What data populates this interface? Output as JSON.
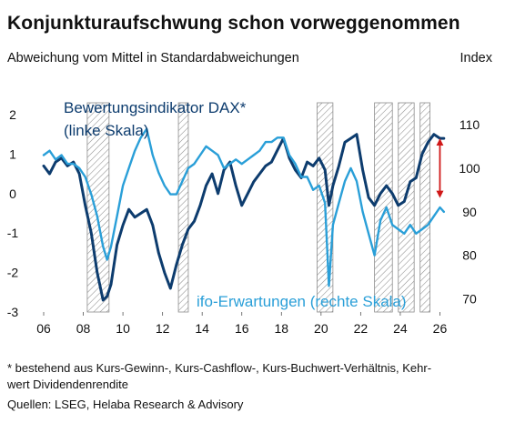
{
  "chart_data": {
    "type": "line",
    "title": "Konjunkturaufschwung schon vorweggenommen",
    "subtitle": "Abweichung vom Mittel in Standardabweichungen",
    "right_axis_unit": "Index",
    "x_tick_labels": [
      "06",
      "08",
      "10",
      "12",
      "14",
      "16",
      "18",
      "20",
      "22",
      "24",
      "26"
    ],
    "x_range": [
      2006,
      2026.3
    ],
    "y_left_ticks": [
      "2",
      "1",
      "0",
      "-1",
      "-2",
      "-3"
    ],
    "y_left_range": [
      -3,
      2.3
    ],
    "y_right_ticks": [
      "110",
      "100",
      "90",
      "80",
      "70"
    ],
    "y_right_range": [
      67,
      115
    ],
    "shaded_periods": [
      {
        "start": 2008.2,
        "end": 2009.3
      },
      {
        "start": 2012.8,
        "end": 2013.3
      },
      {
        "start": 2019.8,
        "end": 2020.6
      },
      {
        "start": 2022.7,
        "end": 2023.6
      },
      {
        "start": 2023.9,
        "end": 2024.7
      },
      {
        "start": 2025.0,
        "end": 2025.5
      }
    ],
    "annotations": [
      {
        "text": "Bewertungsindikator DAX*",
        "series": "dax"
      },
      {
        "text": "(linke Skala)",
        "series": "dax"
      },
      {
        "text": "ifo-Erwartungen (rechte Skala)",
        "series": "ifo"
      }
    ],
    "series": [
      {
        "id": "dax",
        "axis": "left",
        "color": "#0d3c6e",
        "x": [
          2006.0,
          2006.3,
          2006.6,
          2006.9,
          2007.2,
          2007.5,
          2007.8,
          2008.1,
          2008.4,
          2008.7,
          2009.0,
          2009.2,
          2009.4,
          2009.7,
          2010.0,
          2010.3,
          2010.6,
          2010.9,
          2011.2,
          2011.5,
          2011.8,
          2012.1,
          2012.4,
          2012.7,
          2013.0,
          2013.3,
          2013.6,
          2013.9,
          2014.2,
          2014.5,
          2014.8,
          2015.1,
          2015.4,
          2015.7,
          2016.0,
          2016.3,
          2016.6,
          2016.9,
          2017.2,
          2017.5,
          2017.8,
          2018.1,
          2018.4,
          2018.7,
          2019.0,
          2019.3,
          2019.6,
          2019.9,
          2020.2,
          2020.4,
          2020.6,
          2020.9,
          2021.2,
          2021.5,
          2021.8,
          2022.1,
          2022.4,
          2022.7,
          2023.0,
          2023.3,
          2023.6,
          2023.9,
          2024.2,
          2024.5,
          2024.8,
          2025.1,
          2025.4,
          2025.7,
          2026.0,
          2026.2
        ],
        "y": [
          0.7,
          0.5,
          0.8,
          0.9,
          0.7,
          0.8,
          0.5,
          -0.3,
          -1.0,
          -2.0,
          -2.7,
          -2.6,
          -2.3,
          -1.3,
          -0.8,
          -0.4,
          -0.6,
          -0.5,
          -0.4,
          -0.8,
          -1.5,
          -2.0,
          -2.4,
          -1.8,
          -1.3,
          -0.9,
          -0.7,
          -0.3,
          0.2,
          0.5,
          0.0,
          0.6,
          0.8,
          0.2,
          -0.3,
          0.0,
          0.3,
          0.5,
          0.7,
          0.8,
          1.1,
          1.4,
          0.9,
          0.6,
          0.4,
          0.8,
          0.7,
          0.9,
          0.6,
          -0.3,
          0.2,
          0.7,
          1.3,
          1.4,
          1.5,
          0.6,
          -0.1,
          -0.3,
          0.0,
          0.2,
          0.0,
          -0.3,
          -0.2,
          0.3,
          0.4,
          1.0,
          1.3,
          1.5,
          1.4,
          1.4
        ]
      },
      {
        "id": "ifo",
        "axis": "right",
        "color": "#2a9fd8",
        "x": [
          2006.0,
          2006.3,
          2006.6,
          2006.9,
          2007.2,
          2007.5,
          2007.8,
          2008.1,
          2008.4,
          2008.7,
          2009.0,
          2009.2,
          2009.4,
          2009.7,
          2010.0,
          2010.3,
          2010.6,
          2010.9,
          2011.2,
          2011.5,
          2011.8,
          2012.1,
          2012.4,
          2012.7,
          2013.0,
          2013.3,
          2013.6,
          2013.9,
          2014.2,
          2014.5,
          2014.8,
          2015.1,
          2015.4,
          2015.7,
          2016.0,
          2016.3,
          2016.6,
          2016.9,
          2017.2,
          2017.5,
          2017.8,
          2018.1,
          2018.4,
          2018.7,
          2019.0,
          2019.3,
          2019.6,
          2019.9,
          2020.2,
          2020.4,
          2020.6,
          2020.9,
          2021.2,
          2021.5,
          2021.8,
          2022.1,
          2022.4,
          2022.7,
          2023.0,
          2023.3,
          2023.6,
          2023.9,
          2024.2,
          2024.5,
          2024.8,
          2025.1,
          2025.4,
          2025.7,
          2026.0,
          2026.2
        ],
        "y": [
          103,
          104,
          102,
          103,
          101,
          101,
          100,
          98,
          94,
          89,
          82,
          79,
          82,
          89,
          96,
          100,
          104,
          107,
          109,
          103,
          99,
          96,
          94,
          94,
          97,
          100,
          101,
          103,
          105,
          104,
          103,
          100,
          101,
          102,
          101,
          102,
          103,
          104,
          106,
          106,
          107,
          107,
          103,
          101,
          98,
          98,
          95,
          96,
          92,
          73,
          87,
          92,
          97,
          100,
          97,
          90,
          85,
          80,
          88,
          91,
          87,
          86,
          85,
          87,
          85,
          86,
          87,
          89,
          91,
          90
        ]
      }
    ],
    "arrow": {
      "x": 2026.0,
      "from_right_value": 106,
      "to_right_value": 94,
      "color": "#d01818"
    }
  },
  "footnote_line1": "* bestehend aus Kurs-Gewinn-, Kurs-Cashflow-, Kurs-Buchwert-Verhältnis, Kehr-",
  "footnote_line2": "wert Dividendenrendite",
  "sources": "Quellen: LSEG, Helaba Research & Advisory"
}
